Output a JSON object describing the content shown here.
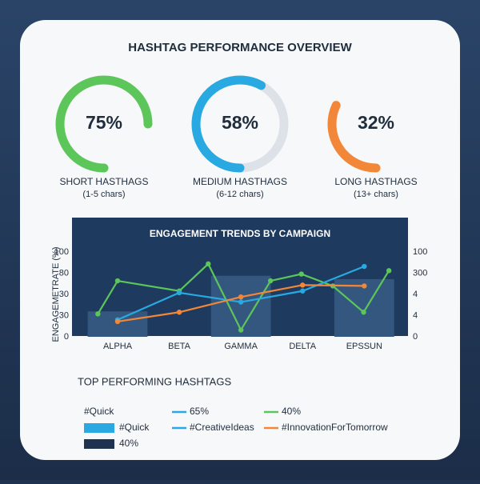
{
  "title": "HASHTAG PERFORMANCE OVERVIEW",
  "chart_data": [
    {
      "type": "gauge",
      "values": [
        75
      ],
      "value_labels": [
        "75%"
      ],
      "label": "SHORT HASTHAGS",
      "sublabel": "(1-5 chars)",
      "color": "#5cc65a",
      "ylim": [
        0,
        100
      ]
    },
    {
      "type": "gauge",
      "values": [
        58
      ],
      "value_labels": [
        "58%"
      ],
      "label": "MEDIUM HASTHAGS",
      "sublabel": "(6-12 chars)",
      "color": "#29a9e1",
      "track_color": "#dde2e8",
      "ylim": [
        0,
        100
      ]
    },
    {
      "type": "gauge",
      "values": [
        32
      ],
      "value_labels": [
        "32%"
      ],
      "label": "LONG HASTHAGS",
      "sublabel": "(13+ chars)",
      "color": "#f2873a",
      "ylim": [
        0,
        100
      ]
    },
    {
      "type": "line",
      "title": "ENGAGEMENT TRENDS BY CAMPAIGN",
      "y_label": "ENGAGEMETRATE (%)",
      "categories": [
        "ALPHA",
        "BETA",
        "GAMMA",
        "DELTA",
        "EPSSUN"
      ],
      "xlim": [
        -0.48,
        4.45
      ],
      "ylim": [
        0,
        100
      ],
      "yticks": [
        0,
        {
          "value": 25,
          "label": "30"
        },
        {
          "value": 50,
          "label": "30"
        },
        {
          "value": 75,
          "label": "80"
        },
        100
      ],
      "y2lim": [
        0,
        400
      ],
      "y2ticks": [
        0,
        {
          "value": 100,
          "label": "4"
        },
        {
          "value": 200,
          "label": "4"
        },
        300,
        {
          "value": 400,
          "label": "100"
        }
      ],
      "series": [
        {
          "type": "bar",
          "color": "#34577f",
          "values": [
            30,
            null,
            72,
            null,
            68
          ]
        },
        {
          "color": "#5cc65a",
          "x": [
            -0.32,
            0,
            1,
            1.47,
            2,
            2.48,
            2.98,
            3.49,
            3.99,
            4.4
          ],
          "values": [
            27,
            66,
            54,
            86,
            8,
            66,
            74,
            60,
            29,
            78
          ]
        },
        {
          "color": "#29a9e1",
          "x": [
            0,
            1,
            2,
            3,
            4
          ],
          "values": [
            20,
            52,
            41,
            54,
            83
          ]
        },
        {
          "color": "#f2873a",
          "x": [
            0,
            1,
            2,
            3,
            4
          ],
          "values": [
            18,
            29,
            47,
            61,
            60
          ]
        }
      ]
    }
  ],
  "top_hashtags": {
    "title": "TOP PERFORMING HASHTAGS",
    "rows": [
      [
        {
          "label": "#Quick"
        },
        {
          "label": "65%",
          "marker": "line",
          "color": "#29a9e1"
        },
        {
          "label": "40%",
          "marker": "line",
          "color": "#5cc65a"
        }
      ],
      [
        {
          "label": "#Quick",
          "marker": "rect",
          "color": "#29a9e1"
        },
        {
          "label": "#CreativeIdeas",
          "marker": "line",
          "color": "#29a9e1"
        },
        {
          "label": "#InnovationForTomorrow",
          "marker": "line",
          "color": "#f2873a"
        }
      ],
      [
        {
          "label": "40%",
          "marker": "rect",
          "color": "#1f3350"
        }
      ]
    ]
  }
}
